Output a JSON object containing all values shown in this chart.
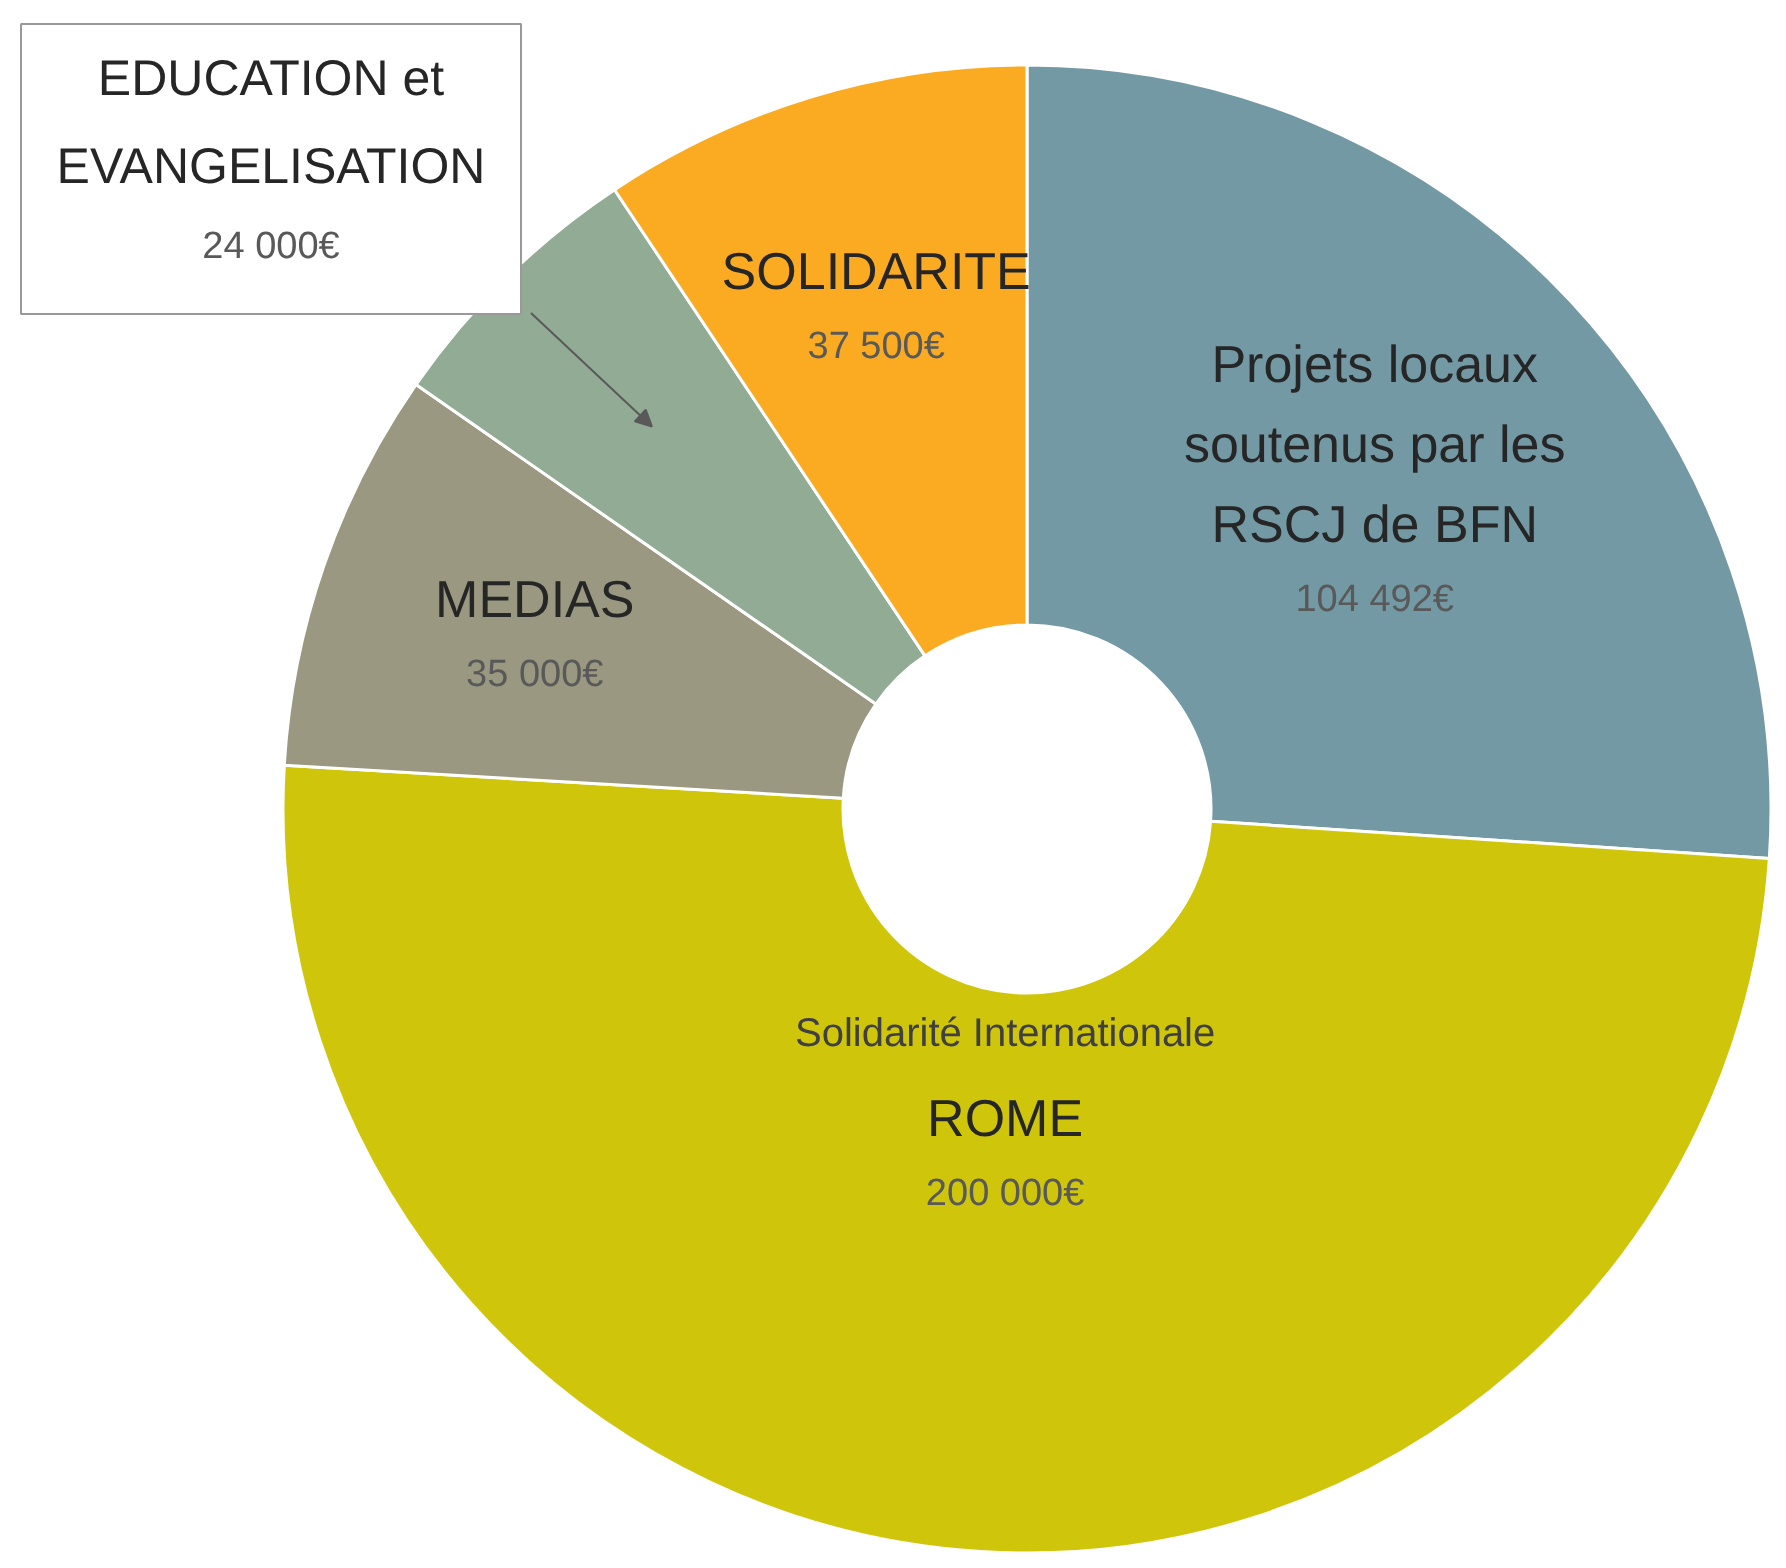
{
  "chart_data": {
    "type": "donut",
    "categories": [
      "Projets locaux\nsoutenus par les\nRSCJ de BFN",
      "ROME",
      "MEDIAS",
      "EDUCATION et\nEVANGELISATION",
      "SOLIDARITE"
    ],
    "values": [
      104492,
      200000,
      35000,
      24000,
      37500
    ],
    "value_labels": [
      "104 492€",
      "200 000€",
      "35 000€",
      "24 000€",
      "37 500€"
    ],
    "colors": [
      "#7399a4",
      "#cfc60c",
      "#9a9880",
      "#91ab94",
      "#fbab22"
    ],
    "annotations": [
      {
        "text": "Solidarité Internationale",
        "x": "ROME"
      }
    ]
  }
}
